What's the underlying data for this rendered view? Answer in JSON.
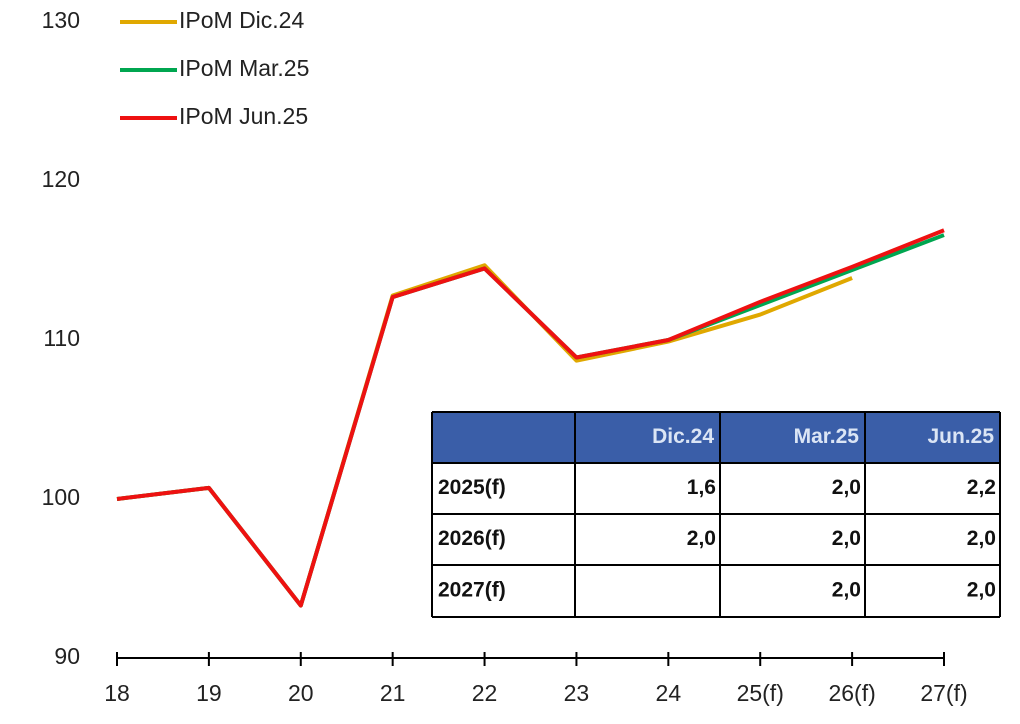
{
  "chart_data": {
    "type": "line",
    "categories": [
      "18",
      "19",
      "20",
      "21",
      "22",
      "23",
      "24",
      "25(f)",
      "26(f)",
      "27(f)"
    ],
    "series": [
      {
        "name": "IPoM Dic.24",
        "color": "#e0a800",
        "values": [
          100,
          100.7,
          93.3,
          112.8,
          114.7,
          108.7,
          109.9,
          111.6,
          113.9,
          null
        ]
      },
      {
        "name": "IPoM Mar.25",
        "color": "#00a650",
        "values": [
          100,
          100.7,
          93.3,
          112.7,
          114.5,
          108.9,
          110.0,
          112.2,
          114.4,
          116.6
        ]
      },
      {
        "name": "IPoM Jun.25",
        "color": "#ee1111",
        "values": [
          100,
          100.7,
          93.3,
          112.7,
          114.5,
          108.9,
          110.0,
          112.4,
          114.6,
          116.9
        ]
      }
    ],
    "ylim": [
      90,
      130
    ],
    "yticks": [
      90,
      100,
      110,
      120,
      130
    ],
    "grid": false,
    "legend": "top-left"
  },
  "table": {
    "columns": [
      "Dic.24",
      "Mar.25",
      "Jun.25"
    ],
    "rows": [
      {
        "label": "2025(f)",
        "values": [
          "1,6",
          "2,0",
          "2,2"
        ]
      },
      {
        "label": "2026(f)",
        "values": [
          "2,0",
          "2,0",
          "2,0"
        ]
      },
      {
        "label": "2027(f)",
        "values": [
          null,
          "2,0",
          "2,0"
        ]
      }
    ]
  }
}
